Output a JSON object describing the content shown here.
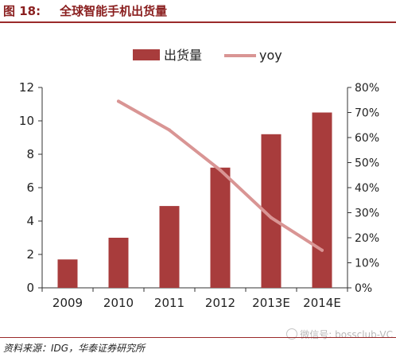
{
  "figure": {
    "number": "图 18:",
    "title": "全球智能手机出货量",
    "source": "资料来源：IDG，华泰证券研究所",
    "watermark": "微信号: bossclub-VC"
  },
  "colors": {
    "bar": "#a83c3c",
    "line": "#d99594",
    "axis": "#333333",
    "accent": "#9a2a2a"
  },
  "chart_data": {
    "type": "bar",
    "categories": [
      "2009",
      "2010",
      "2011",
      "2012",
      "2013E",
      "2014E"
    ],
    "series": [
      {
        "name": "出货量",
        "type": "bar",
        "axis": "left",
        "values": [
          1.7,
          3.0,
          4.9,
          7.2,
          9.2,
          10.5
        ]
      },
      {
        "name": "yoy",
        "type": "line",
        "axis": "right",
        "values": [
          null,
          0.745,
          0.63,
          0.47,
          0.28,
          0.15
        ]
      }
    ],
    "ylim": [
      0,
      12
    ],
    "yticks": [
      "0",
      "2",
      "4",
      "6",
      "8",
      "10",
      "12"
    ],
    "y2lim": [
      0,
      0.8
    ],
    "y2ticks": [
      "0%",
      "10%",
      "20%",
      "30%",
      "40%",
      "50%",
      "60%",
      "70%",
      "80%"
    ],
    "grid": false,
    "legend_position": "top-center"
  }
}
